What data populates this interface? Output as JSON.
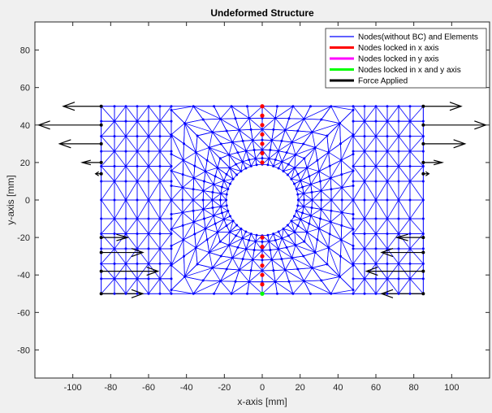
{
  "chart_data": {
    "type": "scatter",
    "title": "Undeformed Structure",
    "xlabel": "x-axis [mm]",
    "ylabel": "y-axis [mm]",
    "xlim": [
      -120,
      120
    ],
    "ylim": [
      -95,
      95
    ],
    "xticks": [
      -100,
      -80,
      -60,
      -40,
      -20,
      0,
      20,
      40,
      60,
      80,
      100
    ],
    "yticks": [
      -80,
      -60,
      -40,
      -20,
      0,
      20,
      40,
      60,
      80
    ],
    "grid": false,
    "legend_position": "top-right",
    "geometry": {
      "x_extent": [
        -85,
        85
      ],
      "y_extent": [
        -50,
        50
      ],
      "hole_center": [
        0,
        0
      ],
      "hole_radius": 19
    },
    "series": [
      {
        "name": "Nodes(without BC) and Elements",
        "color": "#0000ff"
      },
      {
        "name": "Nodes locked in x axis",
        "color": "#ff0000",
        "points": [
          [
            0,
            50
          ],
          [
            0,
            45
          ],
          [
            0,
            40
          ],
          [
            0,
            35
          ],
          [
            0,
            30
          ],
          [
            0,
            25
          ],
          [
            0,
            20
          ],
          [
            0,
            -20
          ],
          [
            0,
            -25
          ],
          [
            0,
            -30
          ],
          [
            0,
            -35
          ],
          [
            0,
            -40
          ],
          [
            0,
            -45
          ]
        ]
      },
      {
        "name": "Nodes locked in y axis",
        "color": "#ff00ff",
        "points": []
      },
      {
        "name": "Nodes locked in x and y axis",
        "color": "#00ff00",
        "points": [
          [
            0,
            -50
          ]
        ]
      },
      {
        "name": "Force Applied",
        "color": "#000000",
        "forces": [
          {
            "x": -85,
            "y": 50,
            "dx": -20
          },
          {
            "x": -85,
            "y": 40,
            "dx": -33
          },
          {
            "x": -85,
            "y": 30,
            "dx": -22
          },
          {
            "x": -85,
            "y": 20,
            "dx": -10
          },
          {
            "x": -85,
            "y": 14,
            "dx": -3
          },
          {
            "x": -85,
            "y": -20,
            "dx": 14
          },
          {
            "x": -85,
            "y": -28,
            "dx": 22
          },
          {
            "x": -85,
            "y": -38,
            "dx": 30
          },
          {
            "x": -85,
            "y": -50,
            "dx": 22
          },
          {
            "x": 85,
            "y": 50,
            "dx": 20
          },
          {
            "x": 85,
            "y": 40,
            "dx": 33
          },
          {
            "x": 85,
            "y": 30,
            "dx": 22
          },
          {
            "x": 85,
            "y": 20,
            "dx": 10
          },
          {
            "x": 85,
            "y": 14,
            "dx": 3
          },
          {
            "x": 85,
            "y": -20,
            "dx": -14
          },
          {
            "x": 85,
            "y": -28,
            "dx": -22
          },
          {
            "x": 85,
            "y": -38,
            "dx": -30
          },
          {
            "x": 85,
            "y": -50,
            "dx": -22
          }
        ]
      }
    ]
  }
}
